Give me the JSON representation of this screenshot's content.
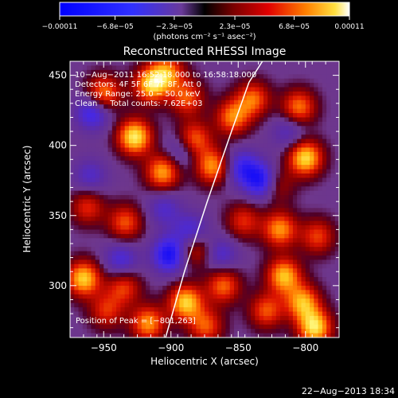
{
  "chart_data": {
    "type": "heatmap",
    "title": "Reconstructed RHESSI Image",
    "xlabel": "Heliocentric X (arcsec)",
    "ylabel": "Heliocentric Y (arcsec)",
    "xlim": [
      -975,
      -775
    ],
    "ylim": [
      263,
      460
    ],
    "x_ticks": [
      -950,
      -900,
      -850,
      -800
    ],
    "x_tick_labels": [
      "−950",
      "−900",
      "−850",
      "−800"
    ],
    "y_ticks": [
      300,
      350,
      400,
      450
    ],
    "y_tick_labels": [
      "300",
      "350",
      "400",
      "450"
    ],
    "colorbar": {
      "min": -0.00011,
      "max": 0.00011,
      "ticks": [
        -0.00011,
        -6.8e-05,
        -2.3e-05,
        2.3e-05,
        6.8e-05,
        0.00011
      ],
      "tick_labels": [
        "−0.00011",
        "−6.8e−05",
        "−2.3e−05",
        "2.3e−05",
        "6.8e−05",
        "0.00011"
      ],
      "unit_label": "(photons cm⁻² s⁻¹ asec⁻²)"
    },
    "annotations": [
      "10−Aug−2011 16:52:18.000 to 16:58:18.000",
      "Detectors: 4F 5F 6F 7F 8F, Att 0",
      "Energy Range: 25.0 − 50.0 keV",
      "Clean     Total counts: 7.62E+03"
    ],
    "peak_label": "Position of Peak = [−801,263]",
    "limb_curve": {
      "x": [
        -904,
        -890,
        -873,
        -855,
        -842,
        -832
      ],
      "y": [
        263,
        310,
        360,
        410,
        445,
        460
      ]
    },
    "hot_spots": [
      {
        "x": -927,
        "y": 406,
        "v": 1.0
      },
      {
        "x": -950,
        "y": 437,
        "v": 0.75
      },
      {
        "x": -915,
        "y": 443,
        "v": 0.85
      },
      {
        "x": -903,
        "y": 452,
        "v": 0.7
      },
      {
        "x": -888,
        "y": 434,
        "v": 0.6
      },
      {
        "x": -883,
        "y": 404,
        "v": 0.7
      },
      {
        "x": -906,
        "y": 381,
        "v": 0.8
      },
      {
        "x": -869,
        "y": 385,
        "v": 0.75
      },
      {
        "x": -854,
        "y": 420,
        "v": 0.7
      },
      {
        "x": -839,
        "y": 433,
        "v": 0.65
      },
      {
        "x": -805,
        "y": 427,
        "v": 0.7
      },
      {
        "x": -800,
        "y": 391,
        "v": 0.95
      },
      {
        "x": -823,
        "y": 372,
        "v": 0.6
      },
      {
        "x": -819,
        "y": 340,
        "v": 0.75
      },
      {
        "x": -791,
        "y": 335,
        "v": 0.55
      },
      {
        "x": -816,
        "y": 307,
        "v": 0.85
      },
      {
        "x": -802,
        "y": 288,
        "v": 0.8
      },
      {
        "x": -793,
        "y": 270,
        "v": 0.95
      },
      {
        "x": -829,
        "y": 282,
        "v": 0.6
      },
      {
        "x": -861,
        "y": 300,
        "v": 0.65
      },
      {
        "x": -874,
        "y": 271,
        "v": 0.6
      },
      {
        "x": -889,
        "y": 288,
        "v": 0.9
      },
      {
        "x": -917,
        "y": 273,
        "v": 0.75
      },
      {
        "x": -935,
        "y": 299,
        "v": 0.55
      },
      {
        "x": -965,
        "y": 305,
        "v": 0.9
      },
      {
        "x": -948,
        "y": 282,
        "v": 0.5
      },
      {
        "x": -962,
        "y": 356,
        "v": 0.5
      },
      {
        "x": -934,
        "y": 345,
        "v": 0.6
      },
      {
        "x": -882,
        "y": 326,
        "v": 0.55
      },
      {
        "x": -846,
        "y": 346,
        "v": 0.5
      }
    ],
    "cold_spots": [
      {
        "x": -958,
        "y": 424,
        "v": -0.6
      },
      {
        "x": -892,
        "y": 396,
        "v": -0.4
      },
      {
        "x": -847,
        "y": 384,
        "v": -0.55
      },
      {
        "x": -831,
        "y": 374,
        "v": -0.9
      },
      {
        "x": -901,
        "y": 322,
        "v": -0.75
      },
      {
        "x": -885,
        "y": 338,
        "v": -0.5
      },
      {
        "x": -937,
        "y": 318,
        "v": -0.45
      },
      {
        "x": -863,
        "y": 322,
        "v": -0.4
      },
      {
        "x": -905,
        "y": 355,
        "v": -0.35
      },
      {
        "x": -960,
        "y": 378,
        "v": -0.35
      },
      {
        "x": -812,
        "y": 410,
        "v": -0.35
      }
    ]
  },
  "timestamp": "22−Aug−2013 18:34"
}
